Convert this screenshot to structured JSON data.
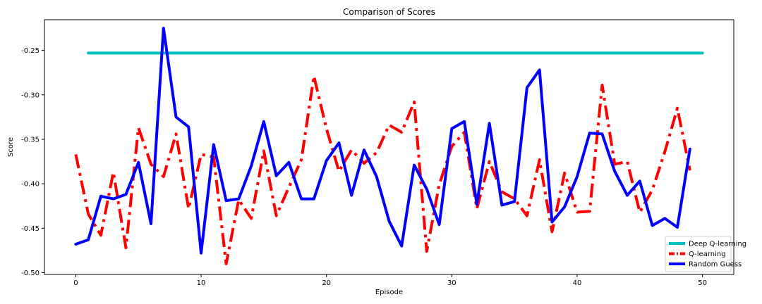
{
  "chart_data": {
    "type": "line",
    "title": "Comparison of Scores",
    "xlabel": "Episode",
    "ylabel": "Score",
    "xlim": [
      -2.5,
      52.5
    ],
    "ylim": [
      -0.502,
      -0.2155
    ],
    "xticks": [
      0,
      10,
      20,
      30,
      40,
      50
    ],
    "yticks": [
      -0.5,
      -0.45,
      -0.4,
      -0.35,
      -0.3,
      -0.25
    ],
    "ytick_labels": [
      "-0.50",
      "-0.45",
      "-0.40",
      "-0.35",
      "-0.30",
      "-0.25"
    ],
    "legend_position": "lower-right",
    "grid": false,
    "series": [
      {
        "name": "Deep Q-learning",
        "color": "#00bfbf",
        "dash": "solid",
        "x": [
          1,
          50
        ],
        "y": [
          -0.253,
          -0.253
        ]
      },
      {
        "name": "Q-learning",
        "color": "#ff0000",
        "dash": "dashdot",
        "x": [
          0,
          1,
          2,
          3,
          4,
          5,
          6,
          7,
          8,
          9,
          10,
          11,
          12,
          13,
          14,
          15,
          16,
          17,
          18,
          19,
          20,
          21,
          22,
          23,
          24,
          25,
          26,
          27,
          28,
          29,
          30,
          31,
          32,
          33,
          34,
          35,
          36,
          37,
          38,
          39,
          40,
          41,
          42,
          43,
          44,
          45,
          46,
          47,
          48,
          49
        ],
        "y": [
          -0.367,
          -0.434,
          -0.458,
          -0.387,
          -0.472,
          -0.337,
          -0.378,
          -0.392,
          -0.344,
          -0.428,
          -0.367,
          -0.37,
          -0.49,
          -0.418,
          -0.439,
          -0.363,
          -0.436,
          -0.404,
          -0.373,
          -0.279,
          -0.338,
          -0.386,
          -0.362,
          -0.377,
          -0.365,
          -0.334,
          -0.342,
          -0.308,
          -0.476,
          -0.401,
          -0.358,
          -0.342,
          -0.428,
          -0.375,
          -0.409,
          -0.417,
          -0.436,
          -0.373,
          -0.454,
          -0.388,
          -0.432,
          -0.431,
          -0.289,
          -0.378,
          -0.375,
          -0.432,
          -0.407,
          -0.364,
          -0.315,
          -0.385
        ]
      },
      {
        "name": "Random Guess",
        "color": "#0000ff",
        "dash": "solid",
        "x": [
          0,
          1,
          2,
          3,
          4,
          5,
          6,
          7,
          8,
          9,
          10,
          11,
          12,
          13,
          14,
          15,
          16,
          17,
          18,
          19,
          20,
          21,
          22,
          23,
          24,
          25,
          26,
          27,
          28,
          29,
          30,
          31,
          32,
          33,
          34,
          35,
          36,
          37,
          38,
          39,
          40,
          41,
          42,
          43,
          44,
          45,
          46,
          47,
          48,
          49
        ],
        "y": [
          -0.468,
          -0.463,
          -0.414,
          -0.417,
          -0.412,
          -0.376,
          -0.445,
          -0.225,
          -0.325,
          -0.336,
          -0.478,
          -0.356,
          -0.419,
          -0.417,
          -0.38,
          -0.33,
          -0.391,
          -0.376,
          -0.417,
          -0.417,
          -0.374,
          -0.354,
          -0.413,
          -0.362,
          -0.392,
          -0.442,
          -0.47,
          -0.379,
          -0.406,
          -0.446,
          -0.338,
          -0.33,
          -0.423,
          -0.332,
          -0.424,
          -0.42,
          -0.292,
          -0.272,
          -0.443,
          -0.426,
          -0.392,
          -0.343,
          -0.344,
          -0.386,
          -0.413,
          -0.397,
          -0.447,
          -0.439,
          -0.449,
          -0.361
        ]
      }
    ]
  }
}
